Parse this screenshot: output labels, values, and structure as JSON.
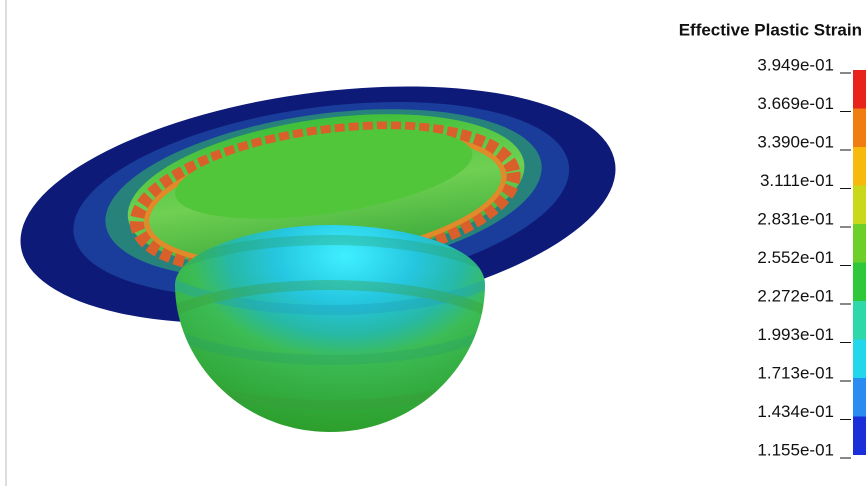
{
  "legend": {
    "title": "Effective Plastic Strain",
    "labels": [
      "3.949e-01",
      "3.669e-01",
      "3.390e-01",
      "3.111e-01",
      "2.831e-01",
      "2.552e-01",
      "2.272e-01",
      "1.993e-01",
      "1.713e-01",
      "1.434e-01",
      "1.155e-01"
    ],
    "colors": [
      "#e8231c",
      "#f07d12",
      "#f6b90c",
      "#c9d81a",
      "#6fcf2a",
      "#2fc83a",
      "#2fd8a8",
      "#22d6ec",
      "#2a8cf0",
      "#1a2fd8"
    ]
  }
}
